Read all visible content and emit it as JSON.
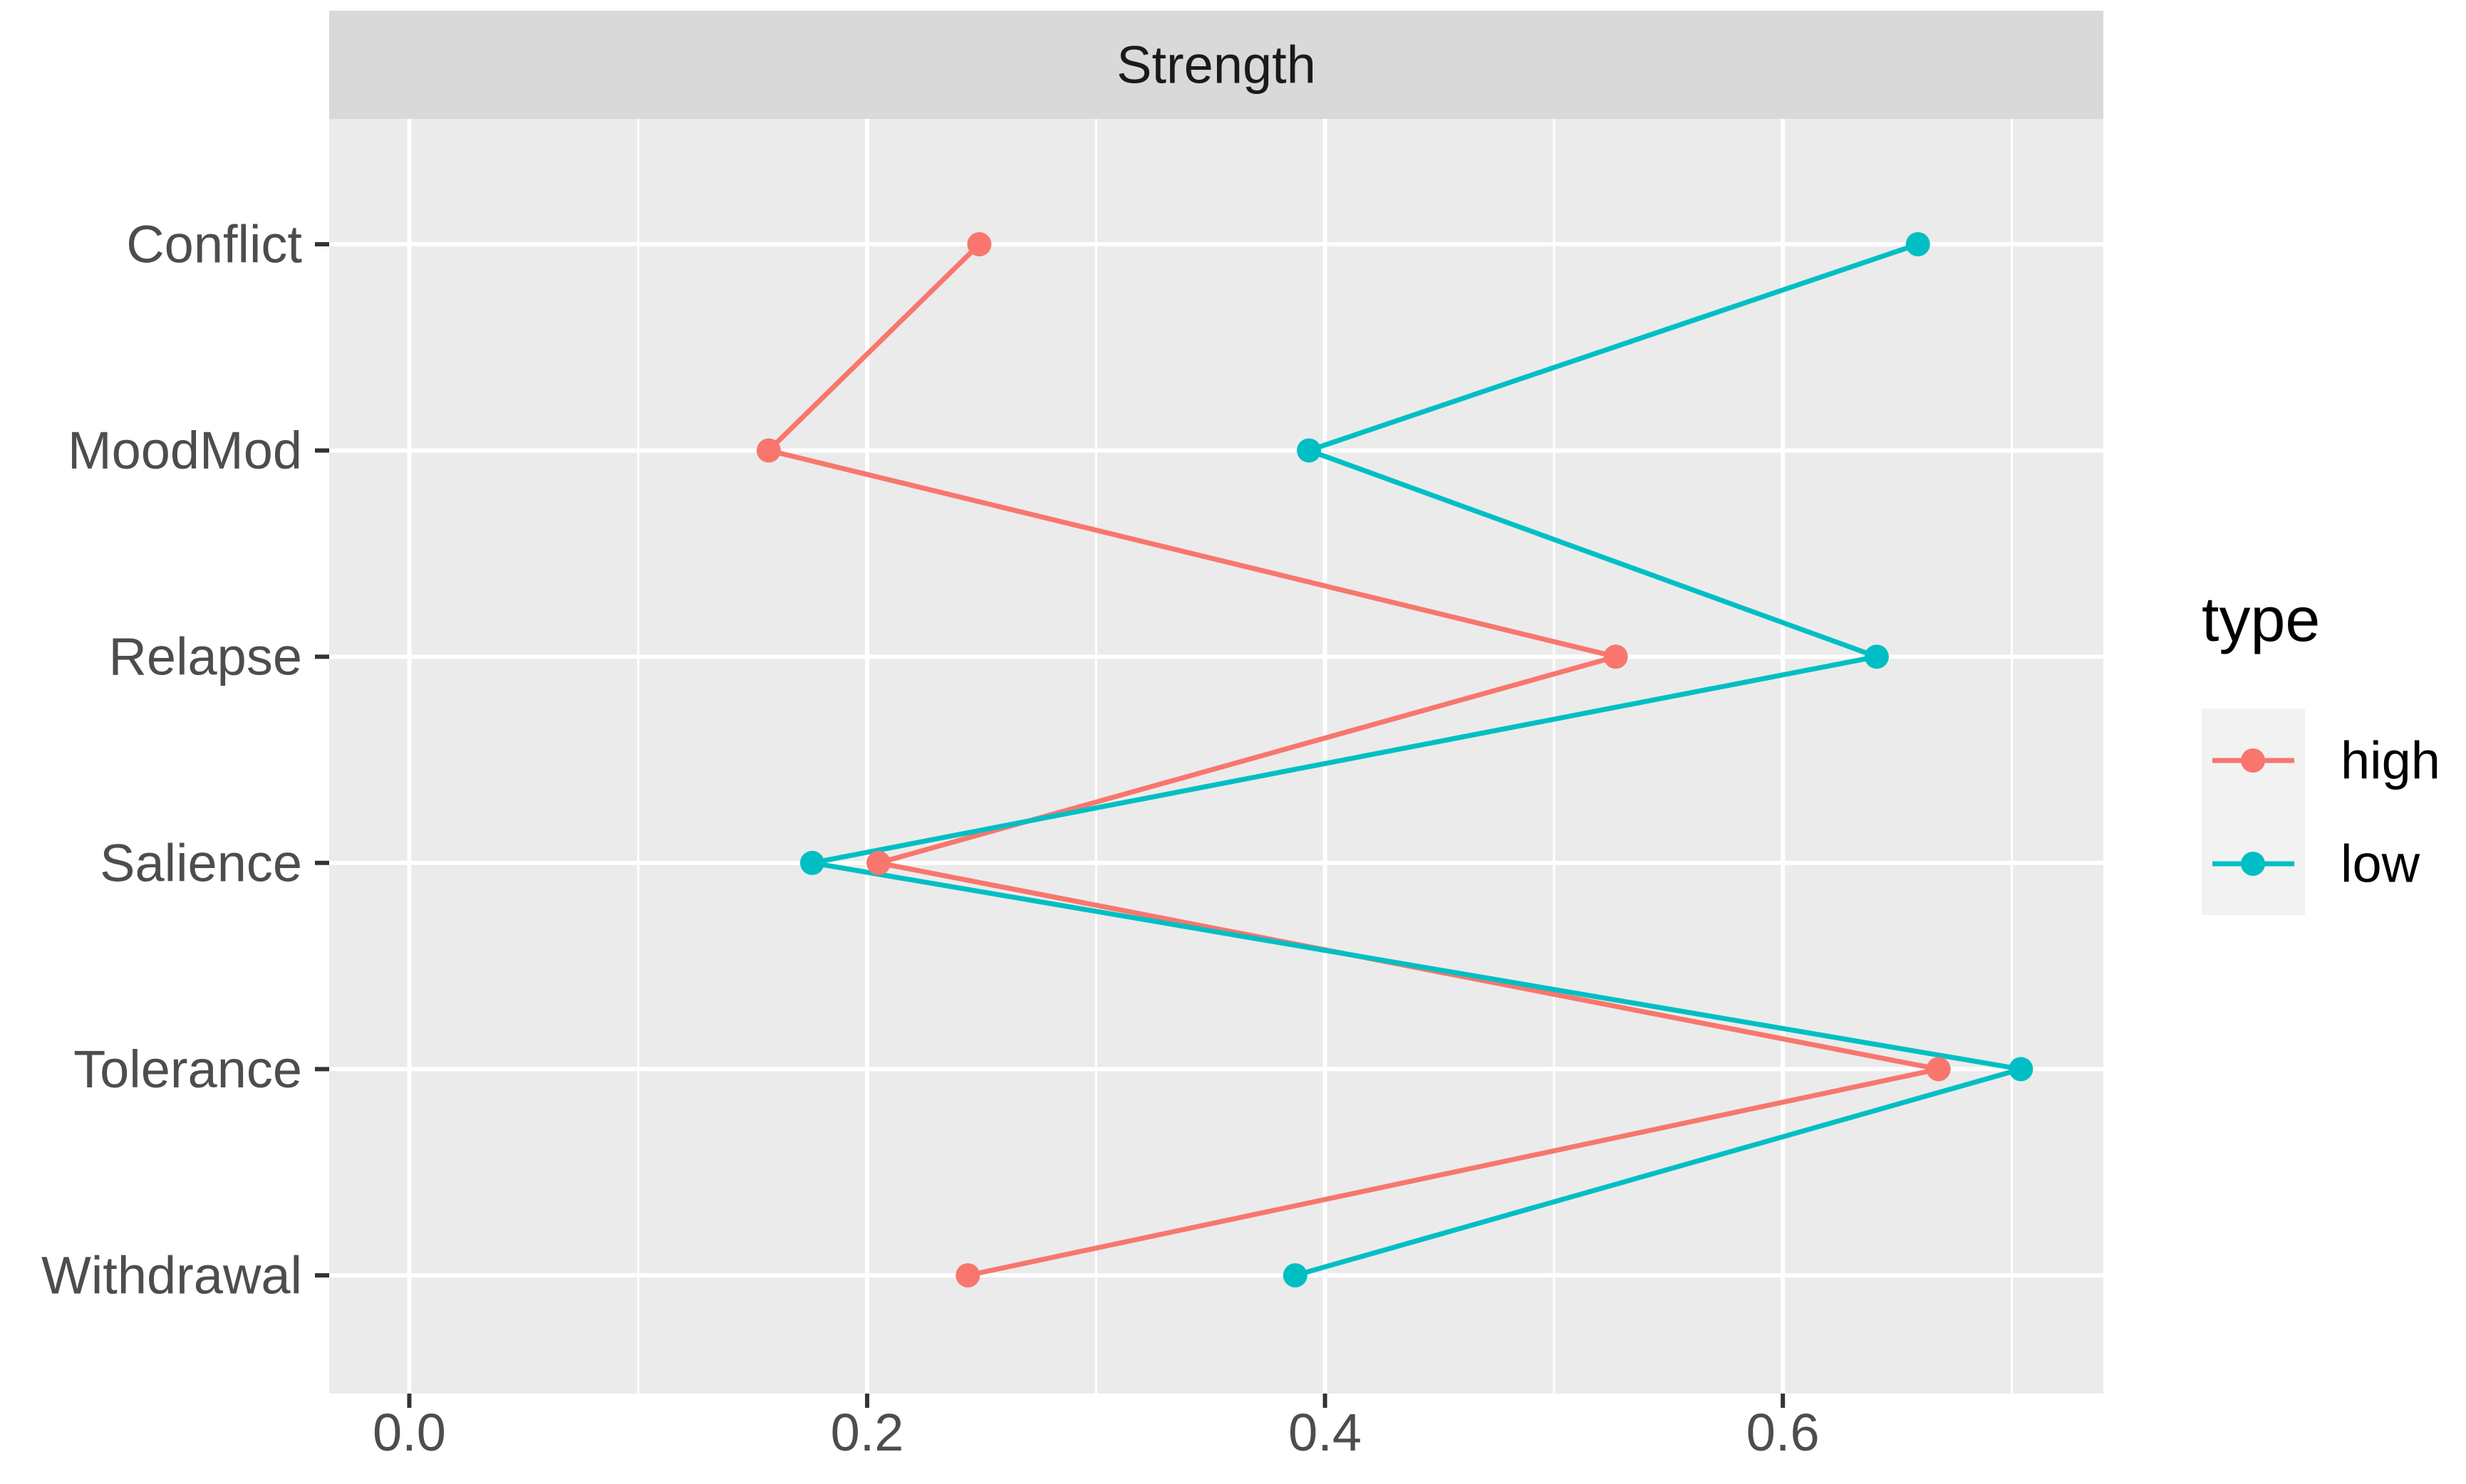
{
  "chart_data": {
    "type": "line",
    "facet_label": "Strength",
    "categories": [
      "Conflict",
      "MoodMod",
      "Relapse",
      "Salience",
      "Tolerance",
      "Withdrawal"
    ],
    "xlim": [
      -0.035,
      0.74
    ],
    "x_ticks": [
      0.0,
      0.2,
      0.4,
      0.6
    ],
    "x_tick_labels": [
      "0.0",
      "0.2",
      "0.4",
      "0.6"
    ],
    "grid": true,
    "legend": {
      "title": "type",
      "placement": "right"
    },
    "series": [
      {
        "name": "high",
        "color": "#F8766D",
        "values": [
          0.249,
          0.157,
          0.527,
          0.205,
          0.668,
          0.244
        ]
      },
      {
        "name": "low",
        "color": "#00BFC4",
        "values": [
          0.659,
          0.393,
          0.641,
          0.176,
          0.704,
          0.387
        ]
      }
    ]
  },
  "colors": {
    "panel_bg": "#EBEBEB",
    "strip_bg": "#D9D9D9",
    "grid_major": "#FFFFFF",
    "tick_text": "#4D4D4D"
  }
}
